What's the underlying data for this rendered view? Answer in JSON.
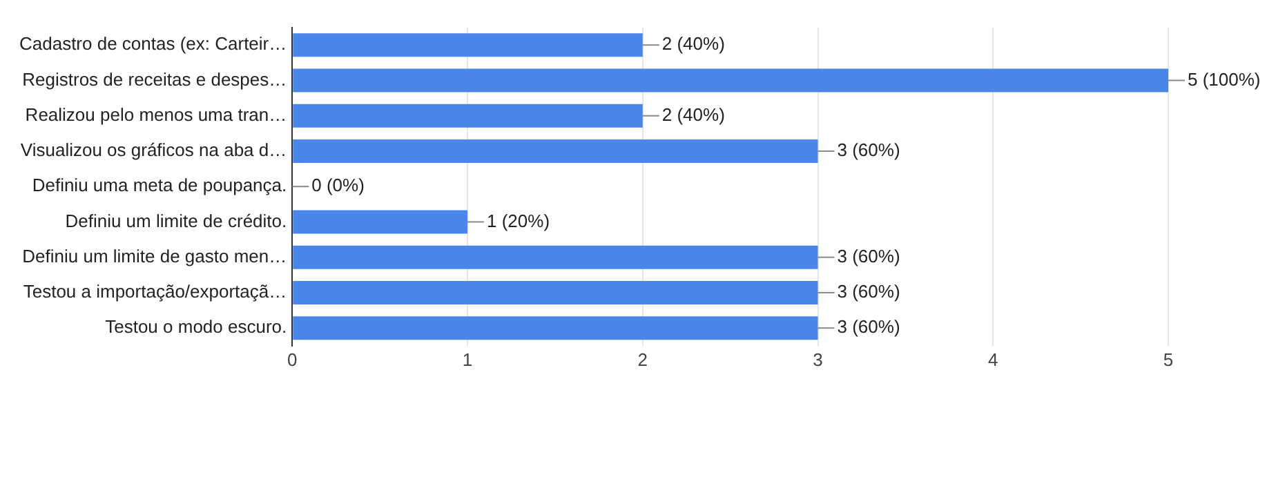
{
  "chart_data": {
    "type": "bar",
    "orientation": "horizontal",
    "categories": [
      "Cadastro de contas (ex: Carteir…",
      "Registros de receitas e despes…",
      "Realizou pelo menos uma tran…",
      "Visualizou os gráficos na aba d…",
      "Definiu uma meta de poupança.",
      "Definiu um limite de crédito.",
      "Definiu um limite de gasto men…",
      "Testou a importação/exportaçã…",
      "Testou o modo escuro."
    ],
    "values": [
      2,
      5,
      2,
      3,
      0,
      1,
      3,
      3,
      3
    ],
    "value_labels": [
      "2 (40%)",
      "5 (100%)",
      "2 (40%)",
      "3 (60%)",
      "0 (0%)",
      "1 (20%)",
      "3 (60%)",
      "3 (60%)",
      "3 (60%)"
    ],
    "color": "#4a86e8",
    "xlim": [
      0,
      5
    ],
    "xticks": [
      0,
      1,
      2,
      3,
      4,
      5
    ],
    "grid": "x",
    "legend": false
  }
}
